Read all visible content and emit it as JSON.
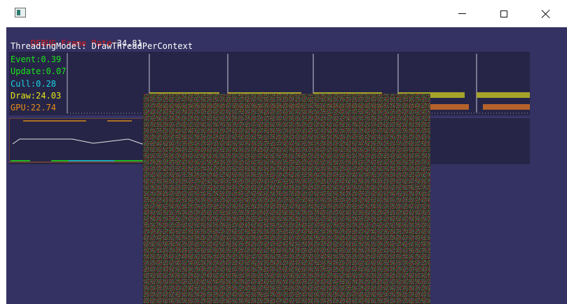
{
  "window": {
    "title": "",
    "controls": [
      "minimize-icon",
      "maximize-icon",
      "close-icon"
    ]
  },
  "stats": {
    "fps_label": "DEBUG Frame Rate:",
    "fps_value": "34.81",
    "threading": "ThreadingModel: DrawThreadPerContext",
    "timings": [
      {
        "label": "Event:0.39",
        "color": "#19e619"
      },
      {
        "label": "Update:0.07",
        "color": "#19e619"
      },
      {
        "label": "Cull:0.28",
        "color": "#19d5e6"
      },
      {
        "label": "Draw:24.03",
        "color": "#e6e619"
      },
      {
        "label": "GPU:22.74",
        "color": "#e68a19"
      }
    ]
  },
  "colors": {
    "background": "#343262",
    "panel": "#262547",
    "draw_bar": "#a6a32b",
    "gpu_bar": "#b4622a",
    "fps_red": "#d91a1a"
  }
}
